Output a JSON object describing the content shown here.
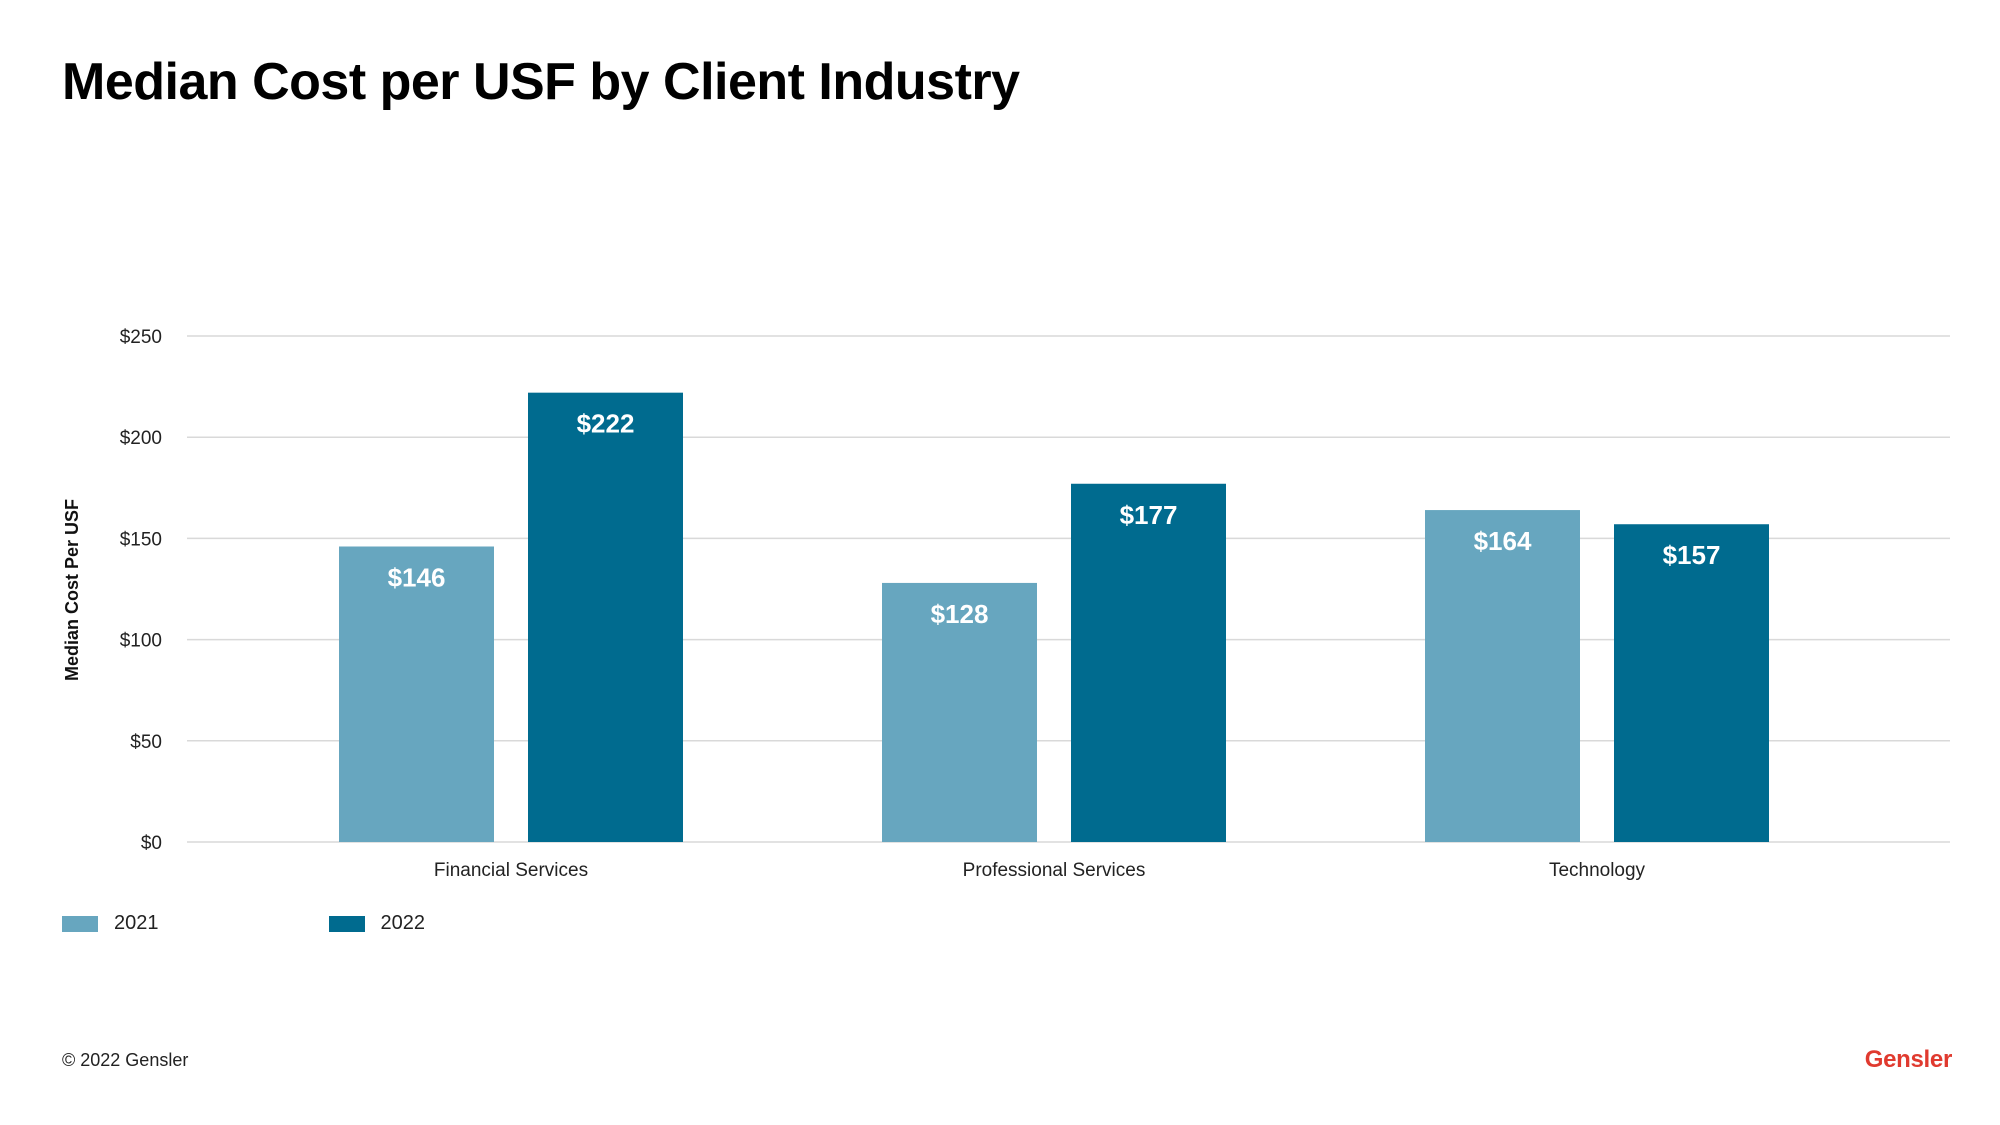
{
  "slide": {
    "title": "Median Cost per USF by Client Industry",
    "footer_copyright": "© 2022 Gensler",
    "logo_text": "Gensler"
  },
  "colors": {
    "series_2021": "#67a6bf",
    "series_2022": "#006b8f",
    "grid": "#d9d9d9",
    "logo": "#e03a2f"
  },
  "chart_data": {
    "type": "bar",
    "title": "Median Cost per USF by Client Industry",
    "xlabel": "",
    "ylabel": "Median Cost Per USF",
    "ylim": [
      0,
      250
    ],
    "yticks": [
      0,
      50,
      100,
      150,
      200,
      250
    ],
    "ytick_labels": [
      "$0",
      "$50",
      "$100",
      "$150",
      "$200",
      "$250"
    ],
    "categories": [
      "Financial Services",
      "Professional Services",
      "Technology"
    ],
    "series": [
      {
        "name": "2021",
        "values": [
          146,
          128,
          164
        ],
        "labels": [
          "$146",
          "$128",
          "$164"
        ]
      },
      {
        "name": "2022",
        "values": [
          222,
          177,
          157
        ],
        "labels": [
          "$222",
          "$177",
          "$157"
        ]
      }
    ],
    "grid": true,
    "legend_position": "bottom-left"
  }
}
